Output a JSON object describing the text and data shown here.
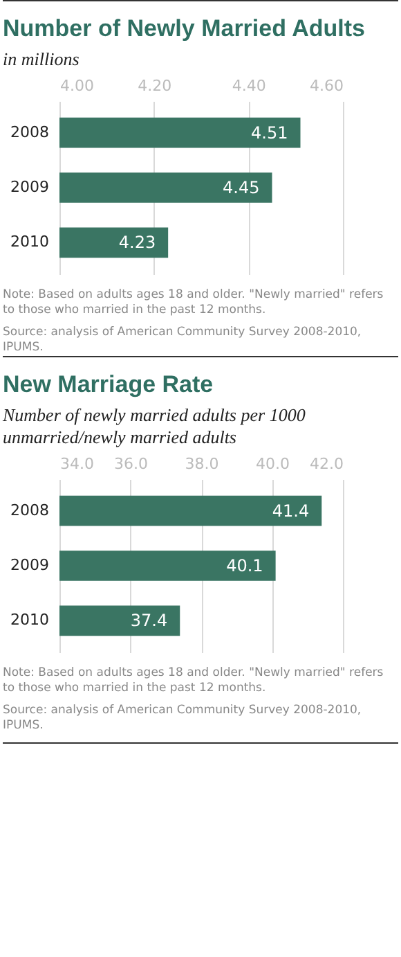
{
  "chart_data": [
    {
      "type": "bar",
      "orientation": "horizontal",
      "title": "Number of Newly Married Adults",
      "subtitle": "in millions",
      "categories": [
        "2008",
        "2009",
        "2010"
      ],
      "values": [
        4.51,
        4.45,
        4.23
      ],
      "color": "#3a7563",
      "data_labels": true,
      "xlim": [
        4.0,
        4.6
      ],
      "xticks": [
        {
          "value": 4.0,
          "label": "4.00"
        },
        {
          "value": 4.2,
          "label": "4.20"
        },
        {
          "value": 4.4,
          "label": "4.40"
        },
        {
          "value": 4.6,
          "label": "4.60"
        }
      ],
      "grid": true,
      "annotations": [
        "Note: Based on adults ages 18 and older. \"Newly married\" refers to those who married in the past 12 months.",
        "Source: analysis of American Community Survey 2008-2010, IPUMS."
      ]
    },
    {
      "type": "bar",
      "orientation": "horizontal",
      "title": "New Marriage Rate",
      "subtitle": "Number of newly married adults per 1000 unmarried/newly married adults",
      "categories": [
        "2008",
        "2009",
        "2010"
      ],
      "values": [
        41.4,
        40.1,
        37.4
      ],
      "color": "#3a7563",
      "data_labels": true,
      "xlim": [
        34.0,
        42.0
      ],
      "xticks": [
        {
          "value": 34.0,
          "label": "34.0"
        },
        {
          "value": 36.0,
          "label": "36.0"
        },
        {
          "value": 38.0,
          "label": "38.0"
        },
        {
          "value": 40.0,
          "label": "40.0"
        },
        {
          "value": 42.0,
          "label": "42.0"
        }
      ],
      "grid": true,
      "annotations": [
        "Note: Based on adults ages 18 and older. \"Newly married\" refers to those who married in the past 12 months.",
        "Source: analysis of American Community Survey 2008-2010, IPUMS."
      ]
    }
  ]
}
